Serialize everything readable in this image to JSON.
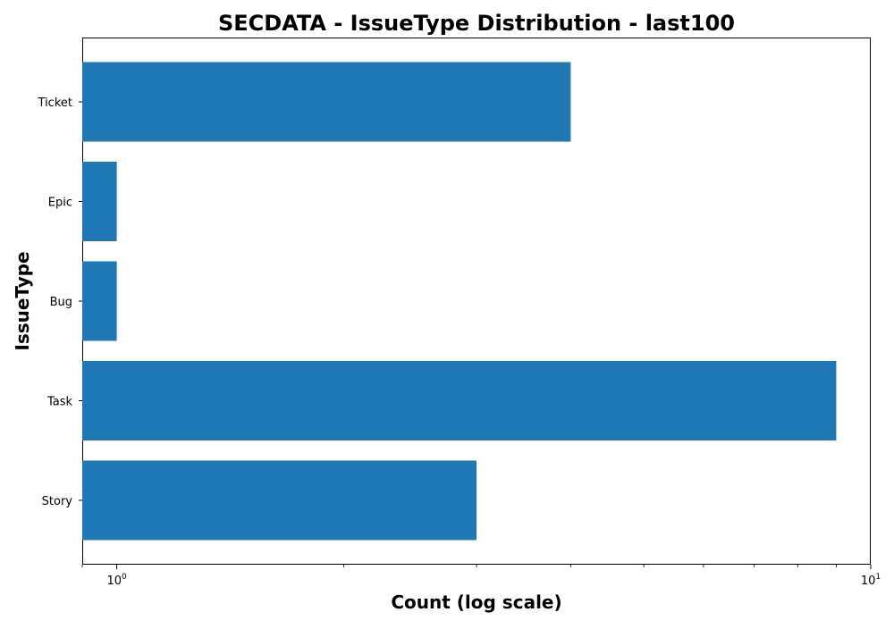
{
  "chart_data": {
    "type": "bar",
    "orientation": "horizontal",
    "title": "SECDATA - IssueType Distribution - last100",
    "xlabel": "Count (log scale)",
    "ylabel": "IssueType",
    "x_scale": "log",
    "xlim": [
      0.9,
      10
    ],
    "x_tick_labels": [
      {
        "base": "10",
        "exp": "0",
        "value": 1
      },
      {
        "base": "10",
        "exp": "1",
        "value": 10
      }
    ],
    "categories": [
      "Story",
      "Task",
      "Bug",
      "Epic",
      "Ticket"
    ],
    "values": [
      3,
      9,
      1,
      1,
      4
    ],
    "bar_color": "#1f77b4",
    "grid": false,
    "legend": "none"
  }
}
